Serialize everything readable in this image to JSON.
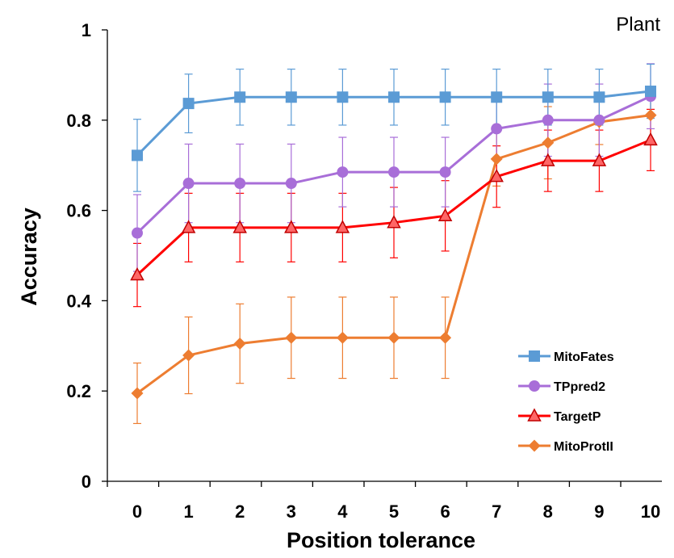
{
  "chart_data": {
    "type": "line",
    "title": "Plant",
    "xlabel": "Position tolerance",
    "ylabel": "Accuracy",
    "x": [
      0,
      1,
      2,
      3,
      4,
      5,
      6,
      7,
      8,
      9,
      10
    ],
    "x_tick_labels": [
      "0",
      "1",
      "2",
      "3",
      "4",
      "5",
      "6",
      "7",
      "8",
      "9",
      "10"
    ],
    "y_tick_labels": [
      "0",
      "0.2",
      "0.4",
      "0.6",
      "0.8",
      "1"
    ],
    "ylim": [
      0,
      1
    ],
    "legend_position": "bottom-right",
    "grid": false,
    "series": [
      {
        "name": "MitoFates",
        "color": "#5b9bd5",
        "marker": "square",
        "values": [
          0.722,
          0.837,
          0.851,
          0.851,
          0.851,
          0.851,
          0.851,
          0.851,
          0.851,
          0.851,
          0.864
        ],
        "error": [
          0.08,
          0.065,
          0.062,
          0.062,
          0.062,
          0.062,
          0.062,
          0.062,
          0.062,
          0.062,
          0.06
        ]
      },
      {
        "name": "TPpred2",
        "color": "#a86ed8",
        "marker": "circle",
        "values": [
          0.55,
          0.66,
          0.66,
          0.66,
          0.685,
          0.685,
          0.685,
          0.781,
          0.8,
          0.8,
          0.853
        ],
        "error": [
          0.085,
          0.087,
          0.087,
          0.087,
          0.077,
          0.077,
          0.077,
          0.07,
          0.08,
          0.08,
          0.072
        ]
      },
      {
        "name": "TargetP",
        "color": "#ff0000",
        "marker": "triangle",
        "values": [
          0.457,
          0.562,
          0.562,
          0.562,
          0.562,
          0.573,
          0.588,
          0.675,
          0.71,
          0.71,
          0.756
        ],
        "error": [
          0.07,
          0.076,
          0.076,
          0.076,
          0.076,
          0.078,
          0.078,
          0.068,
          0.068,
          0.068,
          0.068
        ]
      },
      {
        "name": "MitoProtII",
        "color": "#ed7d31",
        "marker": "diamond",
        "values": [
          0.195,
          0.279,
          0.305,
          0.318,
          0.318,
          0.318,
          0.318,
          0.714,
          0.75,
          0.796,
          0.811
        ],
        "error": [
          0.067,
          0.085,
          0.088,
          0.09,
          0.09,
          0.09,
          0.09,
          0.06,
          0.08,
          0.05,
          0.06
        ]
      }
    ]
  }
}
